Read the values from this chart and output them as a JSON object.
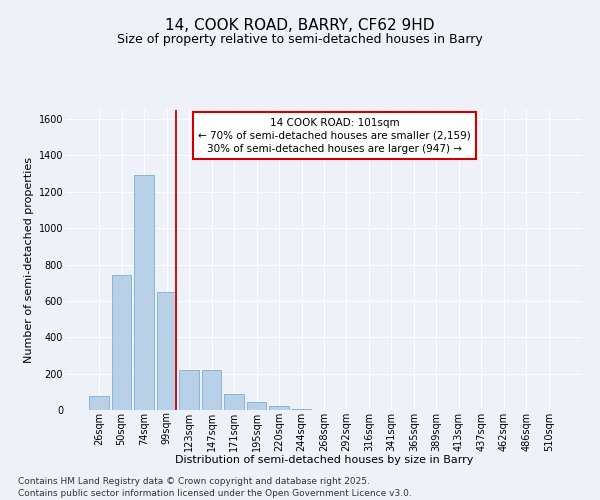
{
  "title": "14, COOK ROAD, BARRY, CF62 9HD",
  "subtitle": "Size of property relative to semi-detached houses in Barry",
  "xlabel": "Distribution of semi-detached houses by size in Barry",
  "ylabel": "Number of semi-detached properties",
  "categories": [
    "26sqm",
    "50sqm",
    "74sqm",
    "99sqm",
    "123sqm",
    "147sqm",
    "171sqm",
    "195sqm",
    "220sqm",
    "244sqm",
    "268sqm",
    "292sqm",
    "316sqm",
    "341sqm",
    "365sqm",
    "389sqm",
    "413sqm",
    "437sqm",
    "462sqm",
    "486sqm",
    "510sqm"
  ],
  "values": [
    75,
    740,
    1295,
    650,
    220,
    220,
    90,
    45,
    20,
    5,
    0,
    0,
    0,
    0,
    0,
    0,
    0,
    0,
    0,
    0,
    0
  ],
  "bar_color": "#b8d0e8",
  "bar_edge_color": "#7aafd4",
  "vline_index": 3,
  "vline_color": "#cc0000",
  "annotation_text": "14 COOK ROAD: 101sqm\n← 70% of semi-detached houses are smaller (2,159)\n30% of semi-detached houses are larger (947) →",
  "annotation_box_color": "#ffffff",
  "annotation_box_edgecolor": "#cc0000",
  "ylim": [
    0,
    1650
  ],
  "yticks": [
    0,
    200,
    400,
    600,
    800,
    1000,
    1200,
    1400,
    1600
  ],
  "footnote": "Contains HM Land Registry data © Crown copyright and database right 2025.\nContains public sector information licensed under the Open Government Licence v3.0.",
  "background_color": "#eef2f8",
  "grid_color": "#ffffff",
  "title_fontsize": 11,
  "subtitle_fontsize": 9,
  "axis_label_fontsize": 8,
  "tick_fontsize": 7,
  "footnote_fontsize": 6.5,
  "annotation_fontsize": 7.5
}
